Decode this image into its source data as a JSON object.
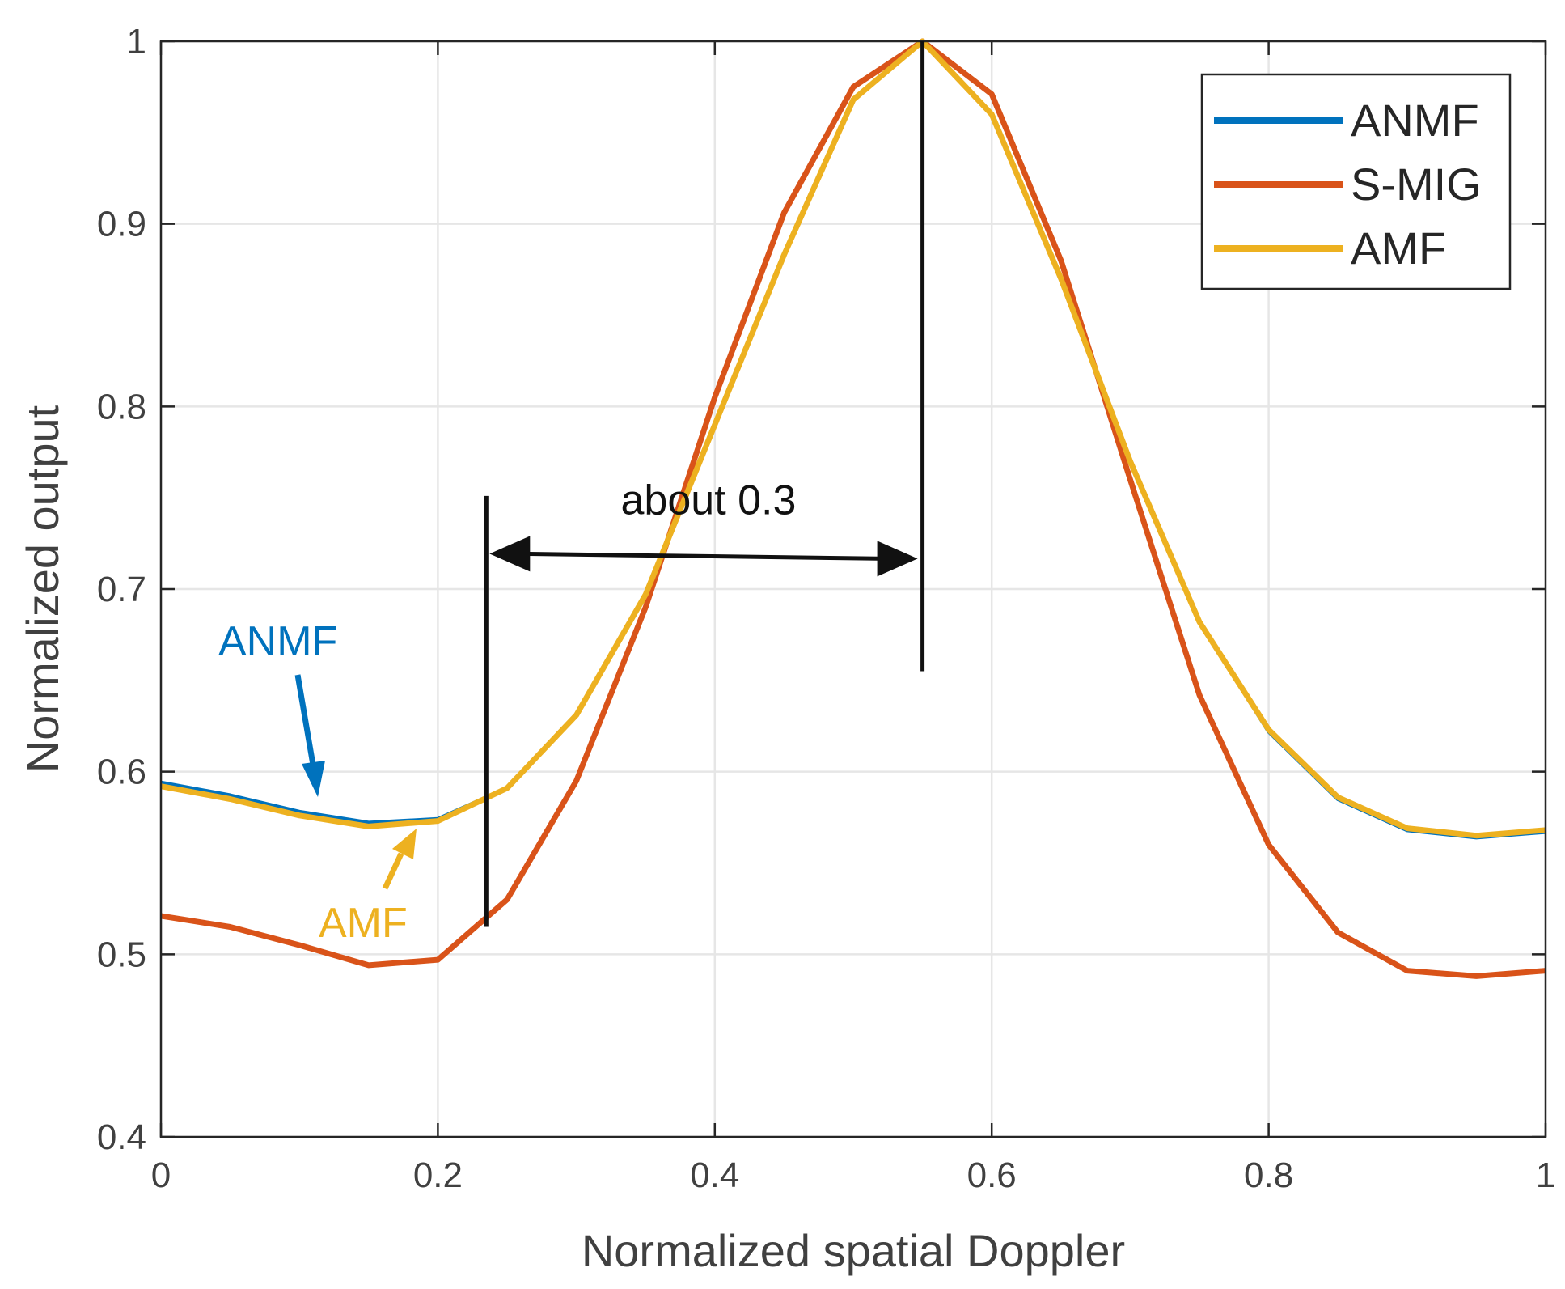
{
  "chart_data": {
    "type": "line",
    "title": "",
    "xlabel": "Normalized spatial Doppler",
    "ylabel": "Normalized output",
    "xlim": [
      0,
      1
    ],
    "ylim": [
      0.4,
      1
    ],
    "xticks": [
      0,
      0.2,
      0.4,
      0.6,
      0.8,
      1
    ],
    "xtick_labels": [
      "0",
      "0.2",
      "0.4",
      "0.6",
      "0.8",
      "1"
    ],
    "yticks": [
      0.4,
      0.5,
      0.6,
      0.7,
      0.8,
      0.9,
      1
    ],
    "ytick_labels": [
      "0.4",
      "0.5",
      "0.6",
      "0.7",
      "0.8",
      "0.9",
      "1"
    ],
    "grid": true,
    "legend_position": "top-right",
    "x": [
      0,
      0.05,
      0.1,
      0.15,
      0.2,
      0.25,
      0.3,
      0.35,
      0.4,
      0.45,
      0.5,
      0.55,
      0.6,
      0.65,
      0.7,
      0.75,
      0.8,
      0.85,
      0.9,
      0.95,
      1
    ],
    "series": [
      {
        "name": "ANMF",
        "color": "#0072BD",
        "values": [
          0.594,
          0.587,
          0.578,
          0.572,
          0.574,
          0.591,
          0.631,
          0.697,
          0.79,
          0.883,
          0.968,
          1.0,
          0.96,
          0.87,
          0.77,
          0.682,
          0.622,
          0.585,
          0.568,
          0.564,
          0.567
        ]
      },
      {
        "name": "S-MIG",
        "color": "#D95319",
        "values": [
          0.521,
          0.515,
          0.505,
          0.494,
          0.497,
          0.53,
          0.595,
          0.69,
          0.805,
          0.906,
          0.975,
          1.0,
          0.971,
          0.88,
          0.76,
          0.642,
          0.56,
          0.512,
          0.491,
          0.488,
          0.491
        ]
      },
      {
        "name": "AMF",
        "color": "#EDB120",
        "values": [
          0.592,
          0.585,
          0.576,
          0.57,
          0.573,
          0.591,
          0.631,
          0.697,
          0.79,
          0.883,
          0.968,
          1.0,
          0.96,
          0.87,
          0.77,
          0.682,
          0.623,
          0.586,
          0.569,
          0.565,
          0.568
        ]
      }
    ],
    "annotations": {
      "span_text": "about 0.3",
      "span_from_x": 0.235,
      "span_to_x": 0.55,
      "span_arrow_y": 0.718,
      "left_marker": {
        "x": 0.235,
        "y_from": 0.515,
        "y_to": 0.751
      },
      "right_marker": {
        "x": 0.55,
        "y_from": 0.655,
        "y_to": 1.0
      },
      "anmf_label": {
        "text": "ANMF",
        "color": "#0072BD"
      },
      "amf_label": {
        "text": "AMF",
        "color": "#EDB120"
      }
    }
  }
}
